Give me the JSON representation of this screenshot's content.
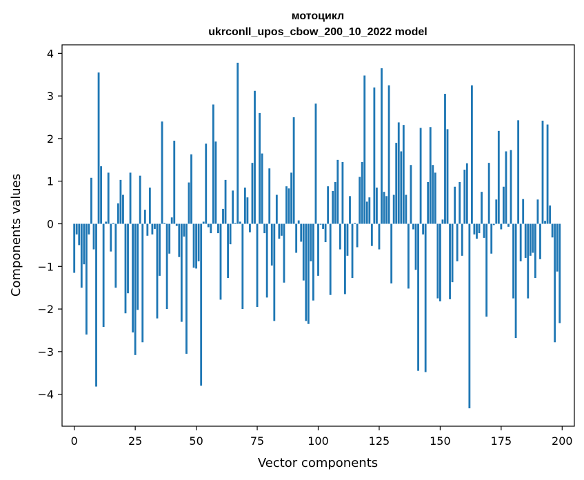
{
  "chart_data": {
    "type": "bar",
    "title_line1": "мотоцикл",
    "title_line2": "ukrconll_upos_cbow_200_10_2022 model",
    "xlabel": "Vector components",
    "ylabel": "Components values",
    "xlim": [
      -5,
      205
    ],
    "ylim": [
      -4.75,
      4.2
    ],
    "xticks": [
      0,
      25,
      50,
      75,
      100,
      125,
      150,
      175,
      200
    ],
    "xtick_labels": [
      "0",
      "25",
      "50",
      "75",
      "100",
      "125",
      "150",
      "175",
      "200"
    ],
    "yticks": [
      -4,
      -3,
      -2,
      -1,
      0,
      1,
      2,
      3,
      4
    ],
    "ytick_labels": [
      "−4",
      "−3",
      "−2",
      "−1",
      "0",
      "1",
      "2",
      "3",
      "4"
    ],
    "bar_color": "#1f77b4",
    "grid": false,
    "values": [
      -1.15,
      -0.25,
      -0.5,
      -1.5,
      -0.95,
      -2.6,
      -0.25,
      1.08,
      -0.6,
      -3.82,
      3.55,
      1.35,
      -2.42,
      0.05,
      1.2,
      -0.65,
      0.02,
      -1.5,
      0.48,
      1.03,
      0.68,
      -2.1,
      -1.63,
      1.2,
      -2.55,
      -3.08,
      -2.02,
      1.13,
      -2.78,
      0.33,
      -0.28,
      0.85,
      -0.25,
      -0.12,
      -2.22,
      -1.22,
      2.4,
      0.02,
      -2.0,
      -0.7,
      0.15,
      1.95,
      -0.05,
      -0.78,
      -2.3,
      -0.3,
      -3.05,
      0.97,
      1.63,
      -1.03,
      -1.05,
      -0.88,
      -3.8,
      0.05,
      1.88,
      -0.08,
      -0.22,
      2.8,
      1.93,
      -0.22,
      -1.78,
      0.35,
      1.03,
      -1.27,
      -0.48,
      0.78,
      0.02,
      3.78,
      0.05,
      -2.0,
      0.85,
      0.62,
      -0.2,
      1.43,
      3.12,
      -1.95,
      2.6,
      1.65,
      -0.22,
      -1.73,
      1.3,
      -0.98,
      -2.28,
      0.68,
      -0.35,
      -0.28,
      -1.38,
      0.88,
      0.83,
      1.2,
      2.5,
      -0.68,
      0.08,
      -0.42,
      -1.33,
      -2.28,
      -2.35,
      -0.88,
      -1.8,
      2.82,
      -1.22,
      -0.02,
      -0.12,
      -0.43,
      0.88,
      -1.67,
      0.77,
      0.98,
      1.5,
      -0.6,
      1.45,
      -1.65,
      -0.75,
      0.65,
      -1.27,
      0.02,
      -0.55,
      1.1,
      1.45,
      3.48,
      0.52,
      0.62,
      -0.52,
      3.2,
      0.85,
      -0.6,
      3.65,
      0.75,
      0.65,
      3.25,
      -1.4,
      0.68,
      1.9,
      2.38,
      1.7,
      2.32,
      0.68,
      -1.52,
      1.38,
      -0.13,
      -1.08,
      -3.45,
      2.25,
      -0.25,
      -3.48,
      0.98,
      2.27,
      1.38,
      1.2,
      -1.75,
      -1.82,
      0.1,
      3.05,
      2.22,
      -1.77,
      -1.37,
      0.87,
      -0.88,
      0.98,
      -0.75,
      1.27,
      1.42,
      -4.33,
      3.25,
      -0.25,
      -0.35,
      -0.22,
      0.75,
      -0.33,
      -2.18,
      1.43,
      -0.7,
      -0.03,
      0.57,
      2.18,
      -0.13,
      0.87,
      1.7,
      -0.07,
      1.73,
      -1.75,
      -2.68,
      2.43,
      -0.88,
      0.58,
      -0.8,
      -1.75,
      -0.75,
      -0.68,
      -1.27,
      0.57,
      -0.83,
      2.42,
      0.07,
      2.33,
      0.43,
      -0.32,
      -2.78,
      -1.12,
      -2.33
    ]
  }
}
